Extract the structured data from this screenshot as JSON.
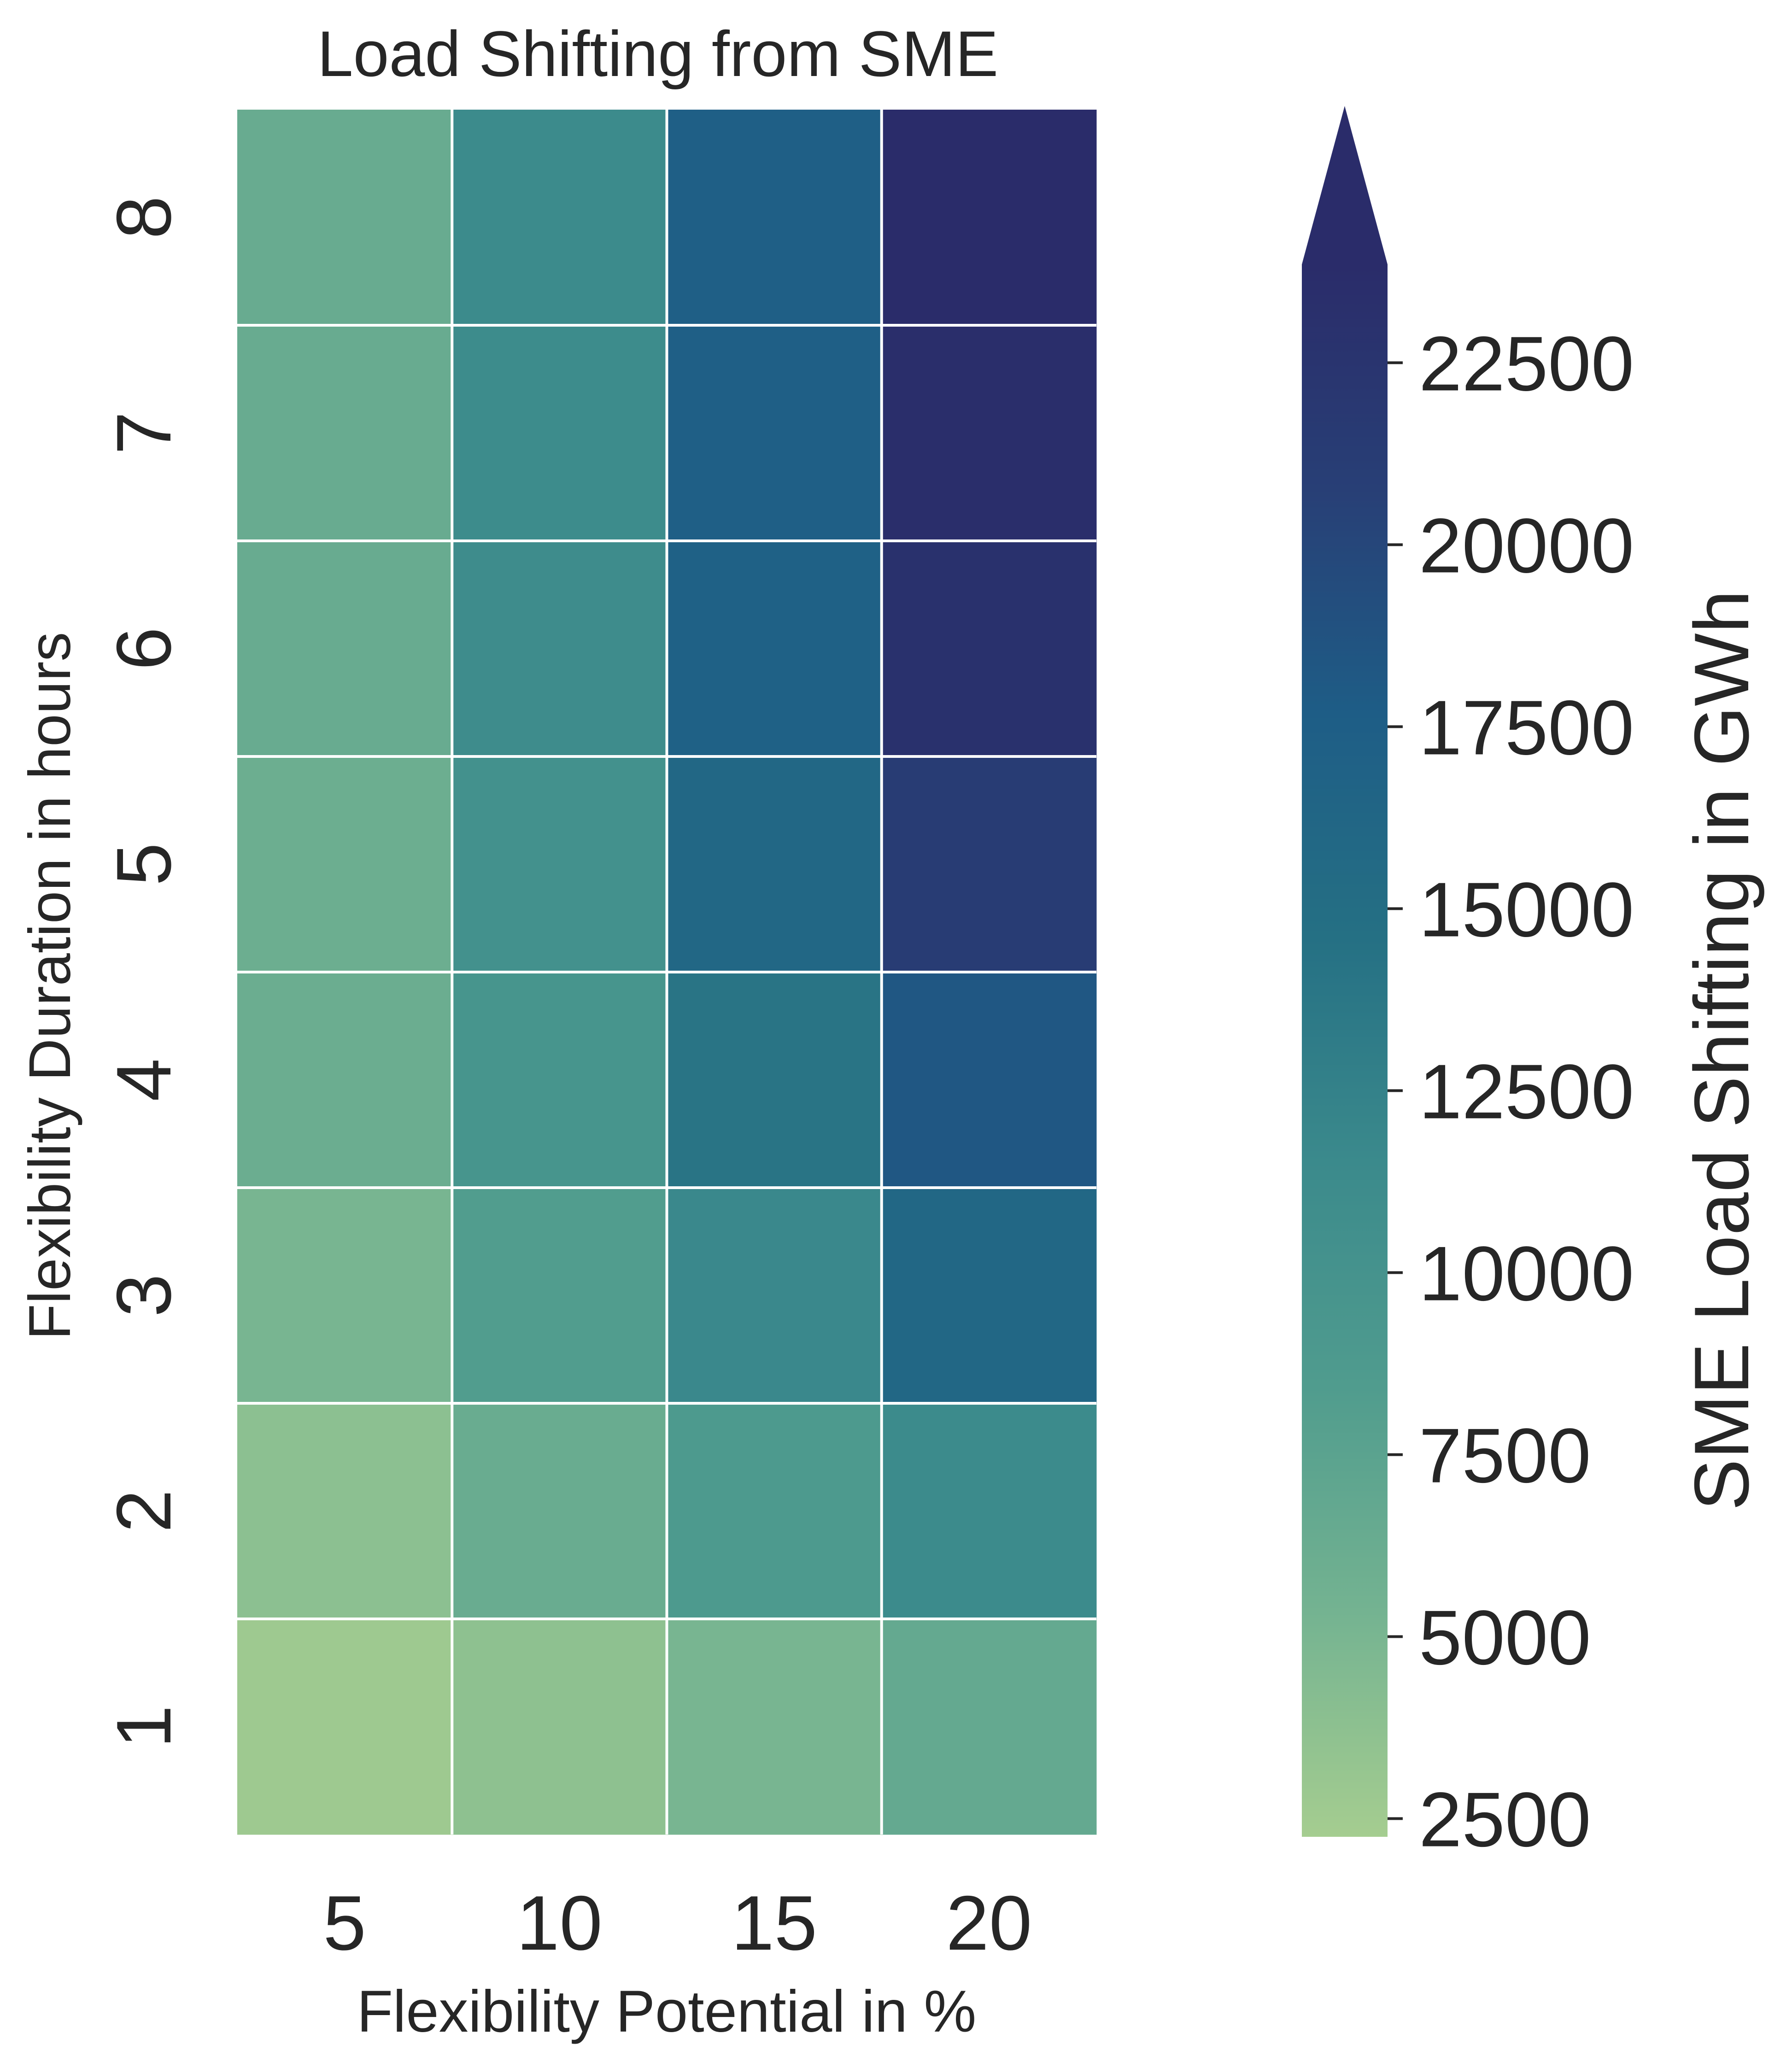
{
  "chart_data": {
    "type": "heatmap",
    "title": "Load Shifting from SME",
    "xlabel": "Flexibility Potential in %",
    "ylabel": "Flexibility Duration in hours",
    "x": [
      5,
      10,
      15,
      20
    ],
    "y": [
      8,
      7,
      6,
      5,
      4,
      3,
      2,
      1
    ],
    "values": [
      [
        6400,
        11300,
        17400,
        24500
      ],
      [
        6400,
        11200,
        17300,
        23500
      ],
      [
        6400,
        11100,
        17100,
        23000
      ],
      [
        6000,
        10300,
        16000,
        21300
      ],
      [
        6100,
        9700,
        14100,
        18300
      ],
      [
        5100,
        8300,
        11700,
        16000
      ],
      [
        3800,
        6300,
        8800,
        11400
      ],
      [
        2700,
        3700,
        5100,
        6700
      ]
    ],
    "colorbar": {
      "label": "SME Load Shifting in GWh",
      "ticks": [
        2500,
        5000,
        7500,
        10000,
        12500,
        15000,
        17500,
        20000,
        22500
      ],
      "range": [
        2250,
        23850
      ],
      "extend": "max",
      "colormap": "crest",
      "colors": [
        "#a5cd90",
        "#74b391",
        "#509c8e",
        "#3b8a8c",
        "#257084",
        "#1e5d86",
        "#283f76",
        "#2a2c6a"
      ]
    }
  }
}
